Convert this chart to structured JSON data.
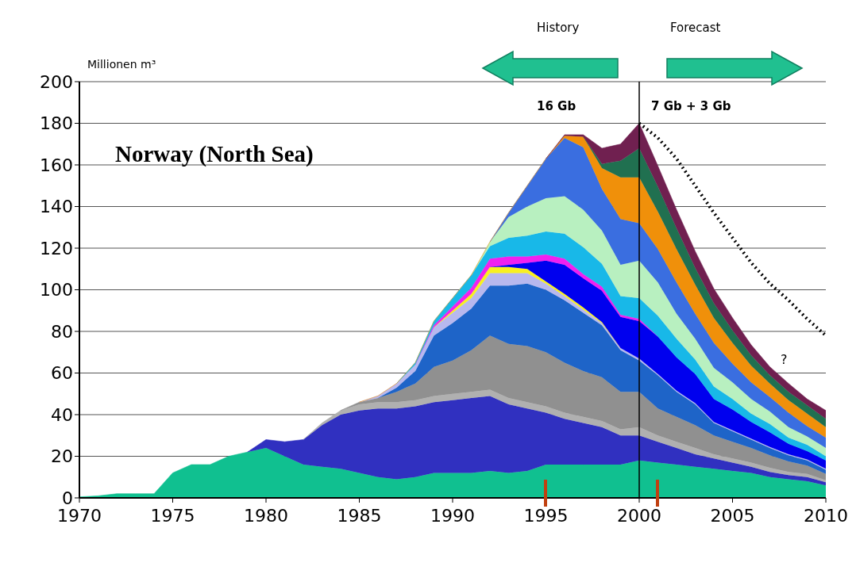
{
  "chart_data": {
    "type": "area",
    "stacked": true,
    "title": "Norway (North Sea)",
    "ylabel": "Millionen m³",
    "x": [
      1970,
      1971,
      1972,
      1973,
      1974,
      1975,
      1976,
      1977,
      1978,
      1979,
      1980,
      1981,
      1982,
      1983,
      1984,
      1985,
      1986,
      1987,
      1988,
      1989,
      1990,
      1991,
      1992,
      1993,
      1994,
      1995,
      1996,
      1997,
      1998,
      1999,
      2000,
      2001,
      2002,
      2003,
      2004,
      2005,
      2006,
      2007,
      2008,
      2009,
      2010
    ],
    "xlim": [
      1970,
      2010
    ],
    "xticks": [
      1970,
      1975,
      1980,
      1985,
      1990,
      1995,
      2000,
      2005,
      2010
    ],
    "ylim": [
      0,
      200
    ],
    "yticks": [
      0,
      20,
      40,
      60,
      80,
      100,
      120,
      140,
      160,
      180,
      200
    ],
    "grid": "y",
    "series": [
      {
        "color": "#10c090",
        "values": [
          0.5,
          1,
          2,
          2,
          2,
          12,
          16,
          16,
          20,
          22,
          24,
          20,
          16,
          15,
          14,
          12,
          10,
          9,
          10,
          12,
          12,
          12,
          13,
          12,
          13,
          16,
          16,
          16,
          16,
          16,
          18,
          17,
          16,
          15,
          14,
          13,
          12,
          10,
          9,
          8,
          6
        ]
      },
      {
        "color": "#3030c0",
        "values": [
          null,
          null,
          null,
          null,
          null,
          null,
          null,
          null,
          null,
          0,
          4,
          7,
          12,
          20,
          26,
          30,
          33,
          34,
          34,
          34,
          35,
          36,
          36,
          33,
          30,
          25,
          22,
          20,
          18,
          14,
          12,
          10,
          8,
          6,
          5,
          4,
          3,
          2.5,
          2,
          2,
          1.5
        ]
      },
      {
        "color": "#b0b0b0",
        "values": [
          null,
          null,
          null,
          null,
          null,
          null,
          null,
          null,
          null,
          null,
          null,
          null,
          0,
          1,
          2,
          3,
          3,
          3,
          3,
          3,
          3,
          3,
          3,
          3,
          3,
          3,
          3,
          3,
          3,
          3,
          4,
          3,
          3,
          3,
          2,
          2,
          2,
          2,
          1.5,
          1.5,
          1
        ]
      },
      {
        "color": "#909090",
        "values": [
          null,
          null,
          null,
          null,
          null,
          null,
          null,
          null,
          null,
          null,
          null,
          null,
          null,
          null,
          0,
          1,
          2,
          5,
          8,
          14,
          16,
          20,
          26,
          26,
          27,
          26,
          24,
          22,
          21,
          18,
          17,
          13,
          12,
          11,
          9,
          8,
          7,
          6,
          5,
          4,
          3
        ]
      },
      {
        "color": "#1e64c8",
        "values": [
          null,
          null,
          null,
          null,
          null,
          null,
          null,
          null,
          null,
          null,
          null,
          null,
          null,
          null,
          null,
          null,
          0,
          2,
          6,
          15,
          18,
          20,
          24,
          28,
          30,
          30,
          30,
          28,
          25,
          20,
          15,
          16,
          12,
          10,
          6,
          5,
          4,
          3.5,
          3,
          2.5,
          2
        ]
      },
      {
        "color": "#b8b8ee",
        "values": [
          null,
          null,
          null,
          null,
          null,
          null,
          null,
          null,
          null,
          null,
          null,
          null,
          null,
          null,
          null,
          0,
          1,
          2,
          3,
          4,
          5,
          5,
          6,
          6,
          5,
          3,
          2,
          1.5,
          1,
          1,
          1,
          0.5,
          0.5,
          0.5,
          0.5,
          0.5,
          0.5,
          0.5,
          0.5,
          0.5,
          0.5
        ]
      },
      {
        "color": "#f8f020",
        "values": [
          null,
          null,
          null,
          null,
          null,
          null,
          null,
          null,
          null,
          null,
          null,
          null,
          null,
          null,
          null,
          null,
          null,
          null,
          null,
          0,
          1,
          2,
          3,
          3,
          2,
          1,
          1,
          1,
          0.5,
          0,
          null,
          null,
          null,
          null,
          null,
          null,
          null,
          null,
          null,
          null,
          null
        ]
      },
      {
        "color": "#0000ee",
        "values": [
          null,
          null,
          null,
          null,
          null,
          null,
          null,
          null,
          null,
          null,
          null,
          null,
          null,
          null,
          null,
          null,
          null,
          null,
          null,
          null,
          null,
          null,
          0,
          1,
          3,
          10,
          14,
          14,
          15,
          15,
          18,
          18,
          16,
          14,
          11,
          10,
          8,
          7,
          5,
          4,
          4
        ]
      },
      {
        "color": "#f020f0",
        "values": [
          null,
          null,
          null,
          null,
          null,
          null,
          null,
          null,
          null,
          null,
          null,
          null,
          null,
          null,
          null,
          null,
          null,
          null,
          0,
          1,
          2,
          3,
          4,
          4,
          3,
          3,
          3,
          2,
          2,
          1,
          1,
          0,
          null,
          null,
          null,
          null,
          null,
          null,
          null,
          null,
          null
        ]
      },
      {
        "color": "#18b8e8",
        "values": [
          null,
          null,
          null,
          null,
          null,
          null,
          null,
          null,
          null,
          null,
          null,
          null,
          null,
          null,
          null,
          null,
          null,
          0,
          1,
          2,
          4,
          6,
          6,
          9,
          10,
          11,
          12,
          13,
          11,
          9,
          10,
          10,
          9,
          7,
          6,
          5,
          4,
          4,
          3,
          3,
          2
        ]
      },
      {
        "color": "#b8f0c0",
        "values": [
          null,
          null,
          null,
          null,
          null,
          null,
          null,
          null,
          null,
          null,
          null,
          null,
          null,
          null,
          null,
          null,
          null,
          null,
          null,
          null,
          null,
          0,
          2,
          10,
          14,
          16,
          18,
          18,
          16,
          15,
          18,
          16,
          12,
          10,
          9,
          8,
          7,
          6,
          5,
          4,
          4
        ]
      },
      {
        "color": "#3a6ee0",
        "values": [
          null,
          null,
          null,
          null,
          null,
          null,
          null,
          null,
          null,
          null,
          null,
          null,
          null,
          null,
          null,
          null,
          null,
          null,
          null,
          null,
          null,
          null,
          0,
          2,
          10,
          19,
          28,
          30,
          20,
          22,
          18,
          16,
          15,
          12,
          12,
          9,
          8,
          7,
          7,
          5,
          5
        ]
      },
      {
        "color": "#f0900a",
        "values": [
          null,
          null,
          null,
          null,
          null,
          null,
          null,
          null,
          null,
          null,
          null,
          null,
          null,
          null,
          null,
          0,
          0,
          0,
          0,
          0,
          0,
          0,
          0,
          0,
          0,
          0,
          1,
          5,
          10,
          20,
          22,
          18,
          16,
          14,
          12,
          10,
          8,
          6.5,
          6,
          6,
          5
        ]
      },
      {
        "color": "#207050",
        "values": [
          null,
          null,
          null,
          null,
          null,
          null,
          null,
          null,
          null,
          null,
          null,
          null,
          null,
          null,
          null,
          null,
          null,
          null,
          null,
          null,
          null,
          null,
          null,
          null,
          null,
          null,
          null,
          0,
          2,
          8,
          14,
          12,
          10,
          8,
          7,
          6,
          5,
          4,
          4,
          4,
          4
        ]
      },
      {
        "color": "#702050",
        "values": [
          null,
          null,
          null,
          null,
          null,
          null,
          null,
          null,
          null,
          null,
          null,
          null,
          null,
          null,
          null,
          null,
          null,
          null,
          null,
          null,
          null,
          null,
          null,
          null,
          null,
          0,
          0.5,
          1,
          7.5,
          8,
          12,
          10,
          9,
          8,
          7,
          6,
          5,
          4,
          4,
          3,
          4
        ]
      },
      {
        "type": "line",
        "color": "#000000",
        "line_style": "dotted",
        "x": [
          2000,
          2001,
          2002,
          2003,
          2004,
          2005,
          2006,
          2007,
          2008,
          2009,
          2010
        ],
        "values": [
          180,
          173,
          163,
          150,
          137,
          125,
          113,
          103,
          95,
          86,
          78
        ]
      }
    ],
    "ref_lines": [
      {
        "axis": "x",
        "value": 2000,
        "color": "#000000"
      }
    ],
    "annotations": [
      "History",
      "Forecast",
      "16 Gb",
      "7 Gb + 3 Gb",
      "?"
    ]
  }
}
